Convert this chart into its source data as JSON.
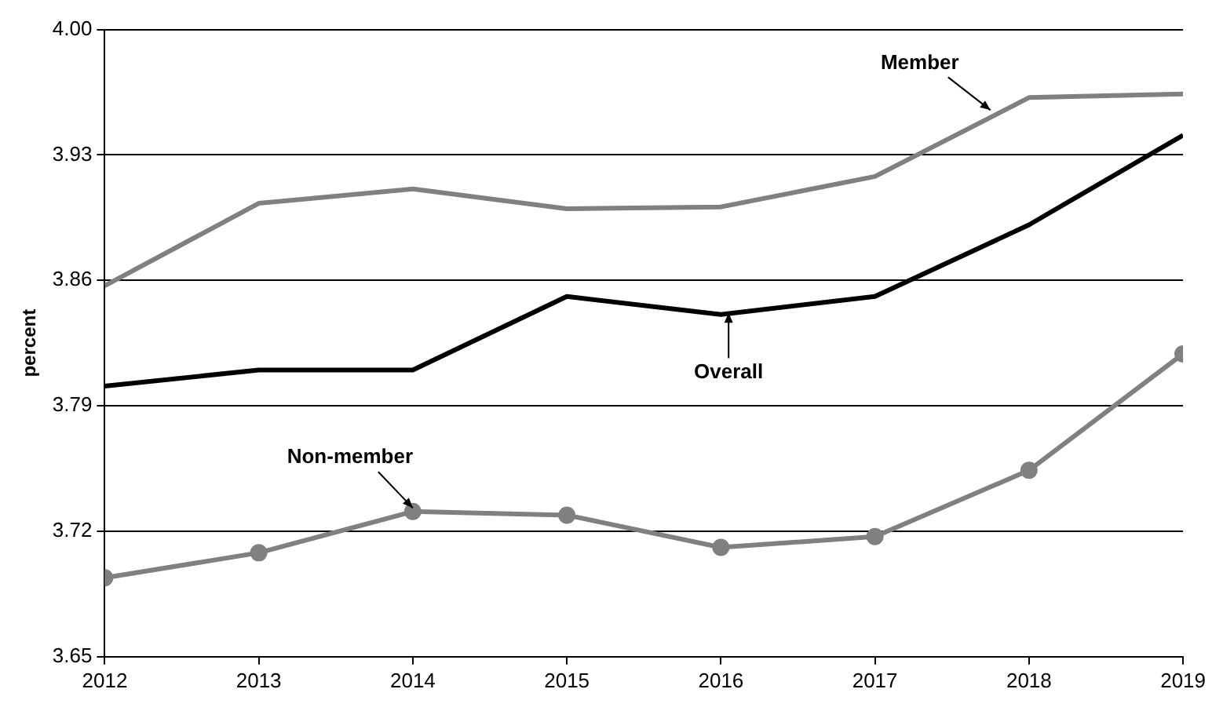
{
  "chart_data": {
    "type": "line",
    "ylabel": "percent",
    "x": [
      2012,
      2013,
      2014,
      2015,
      2016,
      2017,
      2018,
      2019
    ],
    "xlim": [
      2012,
      2019
    ],
    "xticks": [
      2012,
      2013,
      2014,
      2015,
      2016,
      2017,
      2018,
      2019
    ],
    "ylim": [
      3.65,
      4.0
    ],
    "yticks": [
      3.65,
      3.72,
      3.79,
      3.86,
      3.93,
      {
        "value": 4.0,
        "label": "4.00"
      }
    ],
    "grid": "y",
    "legend": false,
    "series": [
      {
        "color": "#808080",
        "marker": "none",
        "values": [
          3.857,
          3.903,
          3.911,
          3.9,
          3.901,
          3.918,
          3.962,
          3.964
        ]
      },
      {
        "color": "#000000",
        "marker": "none",
        "values": [
          3.801,
          3.81,
          3.81,
          3.851,
          3.841,
          3.851,
          3.891,
          3.941
        ]
      },
      {
        "color": "#808080",
        "marker": "circle",
        "values": [
          3.694,
          3.708,
          3.731,
          3.729,
          3.711,
          3.717,
          3.754,
          3.819
        ]
      }
    ],
    "annotations": [
      {
        "text": "Member",
        "x": 2017.75,
        "y": 3.955
      },
      {
        "text": "Overall",
        "x": 2016.05,
        "y": 3.842
      },
      {
        "text": "Non-member",
        "x": 2014,
        "y": 3.733
      }
    ]
  }
}
